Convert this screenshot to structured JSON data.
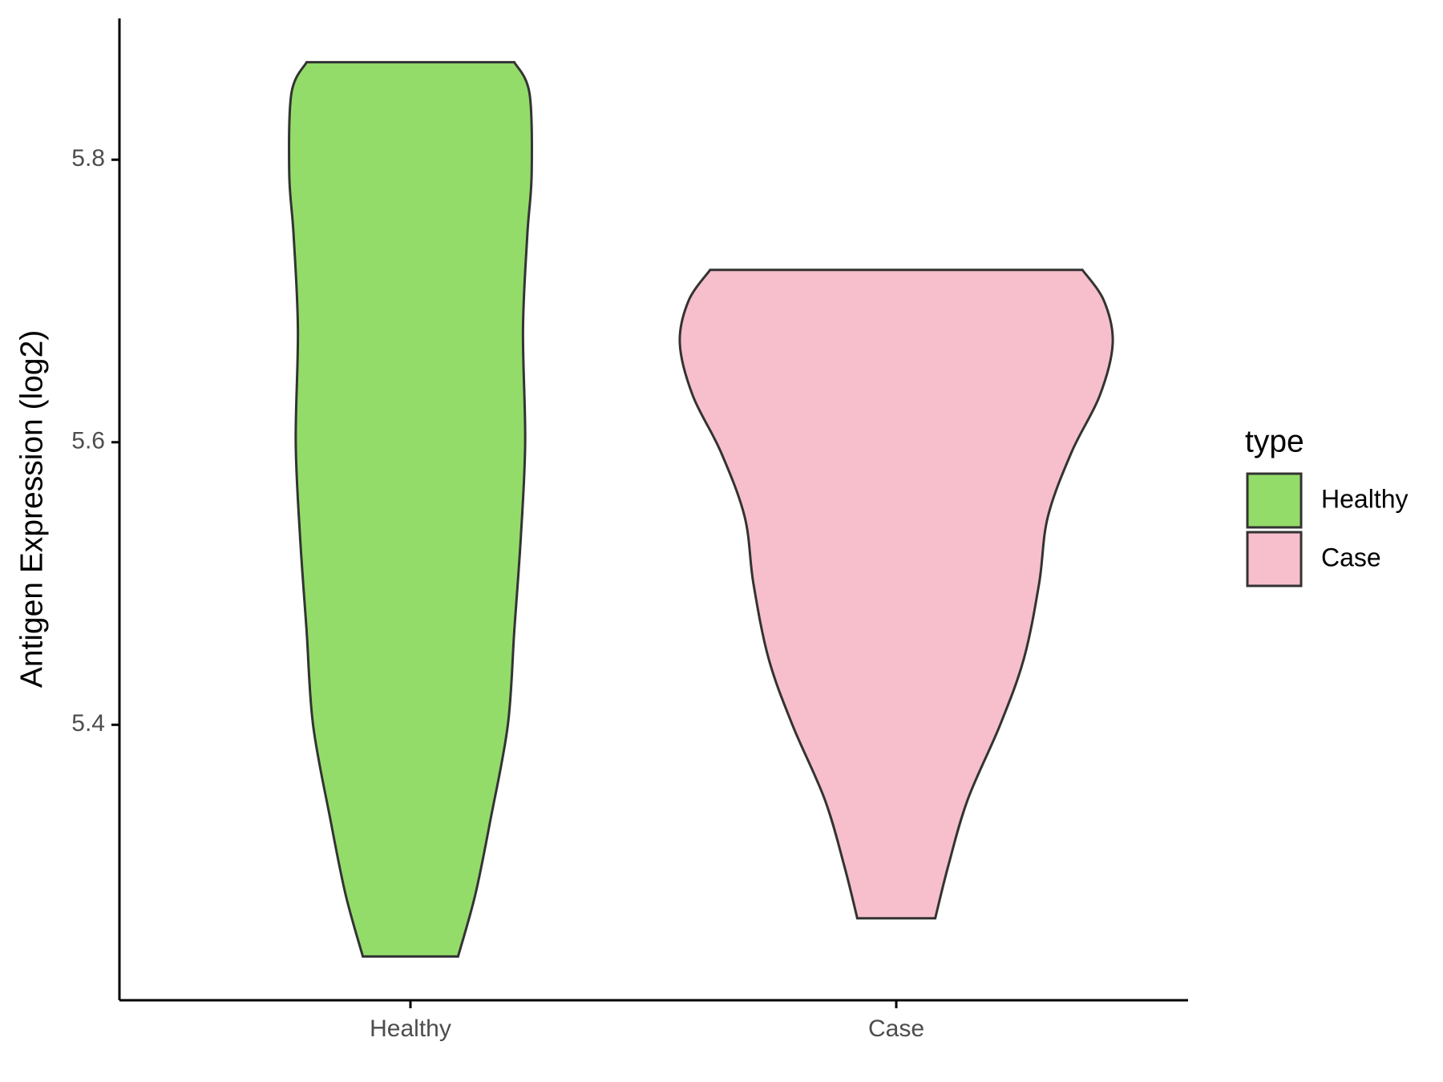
{
  "chart_data": {
    "type": "violin",
    "ylabel": "Antigen Expression (log2)",
    "ylim": [
      5.205,
      5.9
    ],
    "yticks": [
      5.4,
      5.6,
      5.8
    ],
    "categories": [
      "Healthy",
      "Case"
    ],
    "legend_title": "type",
    "legend": "right",
    "series": [
      {
        "name": "Healthy",
        "color": "#93dc6a",
        "y": [
          5.869,
          5.847,
          5.79,
          5.747,
          5.68,
          5.6,
          5.533,
          5.467,
          5.4,
          5.333,
          5.28,
          5.236
        ],
        "width": [
          0.48,
          0.55,
          0.56,
          0.54,
          0.52,
          0.53,
          0.51,
          0.48,
          0.45,
          0.37,
          0.3,
          0.22
        ]
      },
      {
        "name": "Case",
        "color": "#f7bfcb",
        "y": [
          5.722,
          5.7,
          5.67,
          5.633,
          5.593,
          5.547,
          5.5,
          5.447,
          5.4,
          5.347,
          5.3,
          5.263
        ],
        "width": [
          0.86,
          0.96,
          1.0,
          0.94,
          0.81,
          0.7,
          0.66,
          0.59,
          0.48,
          0.33,
          0.24,
          0.18
        ]
      }
    ]
  }
}
